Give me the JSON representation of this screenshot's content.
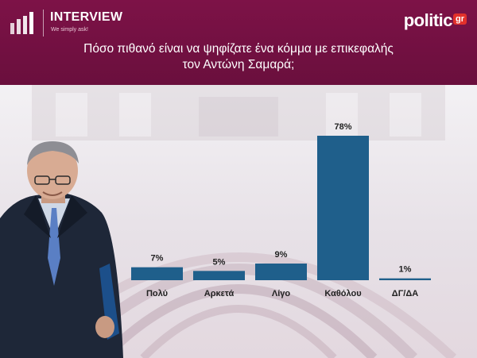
{
  "header": {
    "brand_name": "INTERVIEW",
    "brand_tagline": "We simply ask!",
    "logo_text": "politic",
    "logo_badge": "gr",
    "question_line1": "Πόσο πιθανό είναι να ψηφίζατε ένα κόμμα με επικεφαλής",
    "question_line2": "τον Αντώνη Σαμαρά;"
  },
  "colors": {
    "header_bg": "#731144",
    "bar": "#1f5f8b",
    "logo_badge": "#e2312b"
  },
  "chart_data": {
    "type": "bar",
    "title": "Πόσο πιθανό είναι να ψηφίζατε ένα κόμμα με επικεφαλής τον Αντώνη Σαμαρά;",
    "categories": [
      "Πολύ",
      "Αρκετά",
      "Λίγο",
      "Καθόλου",
      "ΔΓ/ΔΑ"
    ],
    "values": [
      7,
      5,
      9,
      78,
      1
    ],
    "value_labels": [
      "7%",
      "5%",
      "9%",
      "78%",
      "1%"
    ],
    "ylim": [
      0,
      78
    ],
    "grid": false,
    "legend": "none"
  }
}
